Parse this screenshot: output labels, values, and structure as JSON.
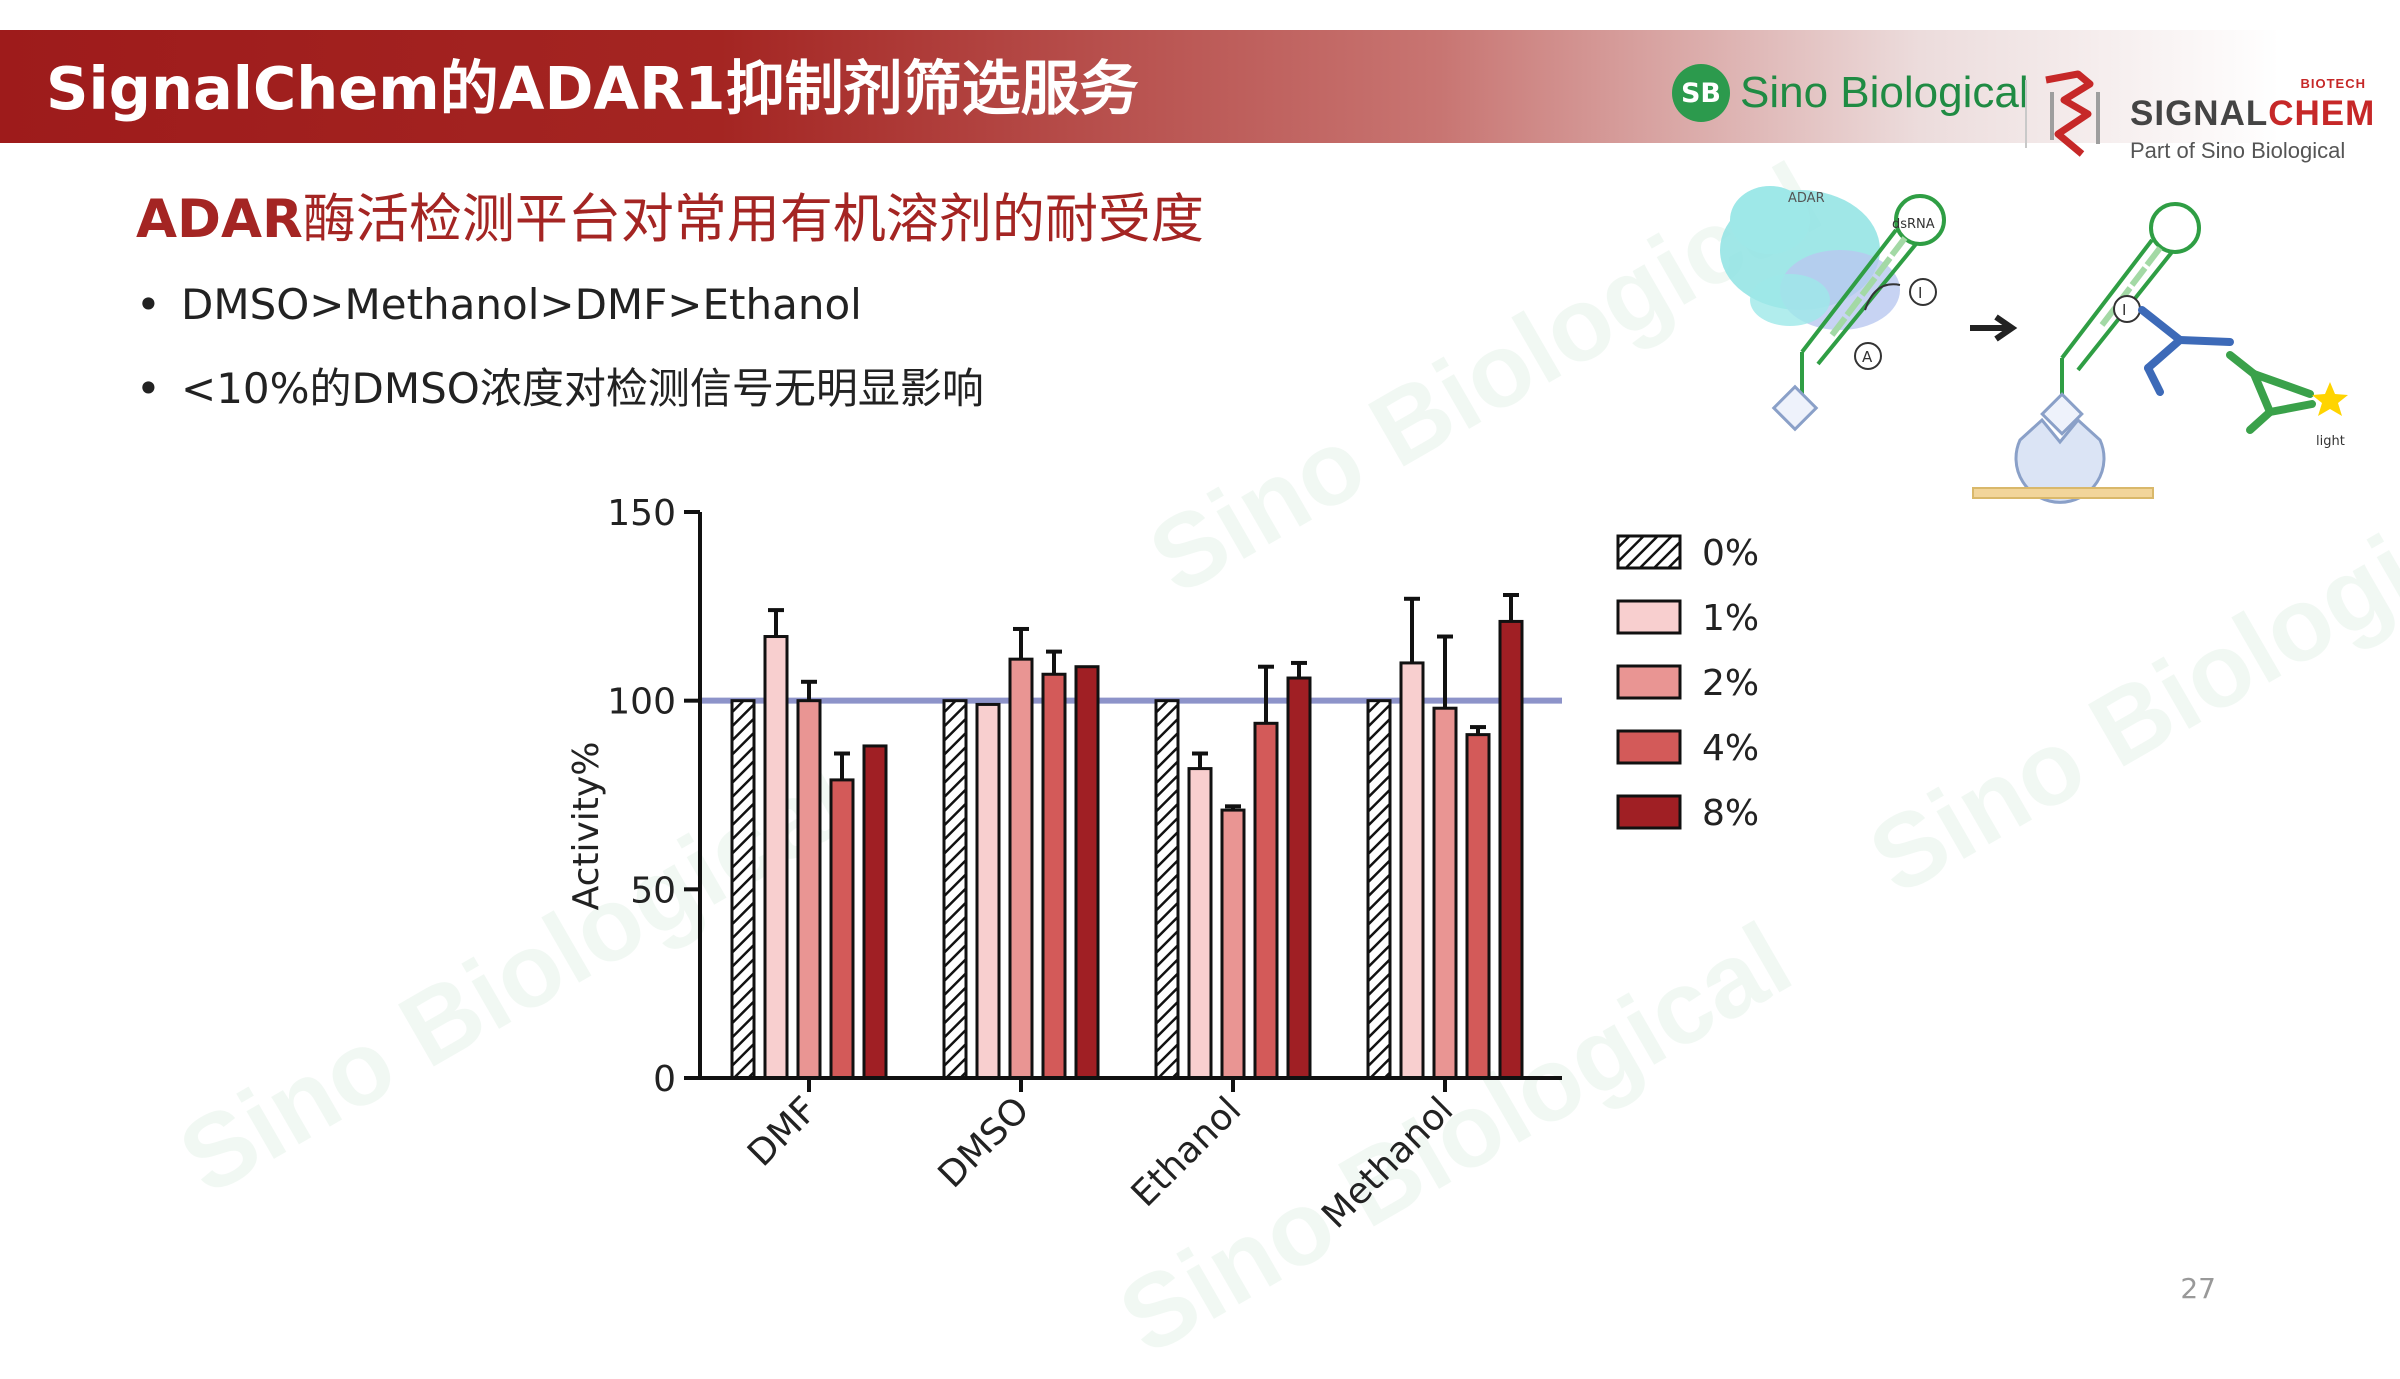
{
  "header": {
    "title": "SignalChem的ADAR1抑制剂筛选服务",
    "sino_logo_badge": "SB",
    "sino_logo_text": "Sino Biological",
    "sc_biotech": "BIOTECH",
    "sc_name_a": "SIGNAL",
    "sc_name_b": "CHEM",
    "sc_part": "Part of Sino Biological"
  },
  "section": {
    "title_bold": "ADAR",
    "title_rest": "酶活检测平台对常用有机溶剂的耐受度"
  },
  "bullets": [
    "DMSO>Methanol>DMF>Ethanol",
    "<10%的DMSO浓度对检测信号无明显影响"
  ],
  "diagram": {
    "adar_label": "ADAR",
    "dsrna_label": "dsRNA",
    "i_label": "I",
    "a_label": "A",
    "i_label_2": "I",
    "light_label": "light"
  },
  "watermark_text": "Sino Biological",
  "page_number": "27",
  "colors": {
    "brand_red": "#a42523",
    "brand_green": "#2c9a4d",
    "reference_line": "#8d93c9"
  },
  "chart_data": {
    "type": "bar",
    "title": "",
    "xlabel": "",
    "ylabel": "Activity%",
    "ylim": [
      0,
      150
    ],
    "yticks": [
      "0",
      "50",
      "100",
      "150"
    ],
    "reference_line": 100,
    "categories": [
      "DMF",
      "DMSO",
      "Ethanol",
      "Methanol"
    ],
    "legend_position": "right",
    "series": [
      {
        "name": "0%",
        "values": [
          100,
          100,
          100,
          100
        ],
        "errors": [
          0,
          0,
          0,
          0
        ],
        "color": "#ffffff",
        "pattern": "hatch"
      },
      {
        "name": "1%",
        "values": [
          117,
          99,
          82,
          110
        ],
        "errors": [
          7,
          0,
          4,
          17
        ],
        "color": "#f8cfcf"
      },
      {
        "name": "2%",
        "values": [
          100,
          111,
          71,
          98
        ],
        "errors": [
          5,
          8,
          1,
          19
        ],
        "color": "#e99593"
      },
      {
        "name": "4%",
        "values": [
          79,
          107,
          94,
          91
        ],
        "errors": [
          7,
          6,
          15,
          2
        ],
        "color": "#d35a59"
      },
      {
        "name": "8%",
        "values": [
          88,
          109,
          106,
          121
        ],
        "errors": [
          0,
          0,
          4,
          7
        ],
        "color": "#a01f24"
      }
    ]
  }
}
